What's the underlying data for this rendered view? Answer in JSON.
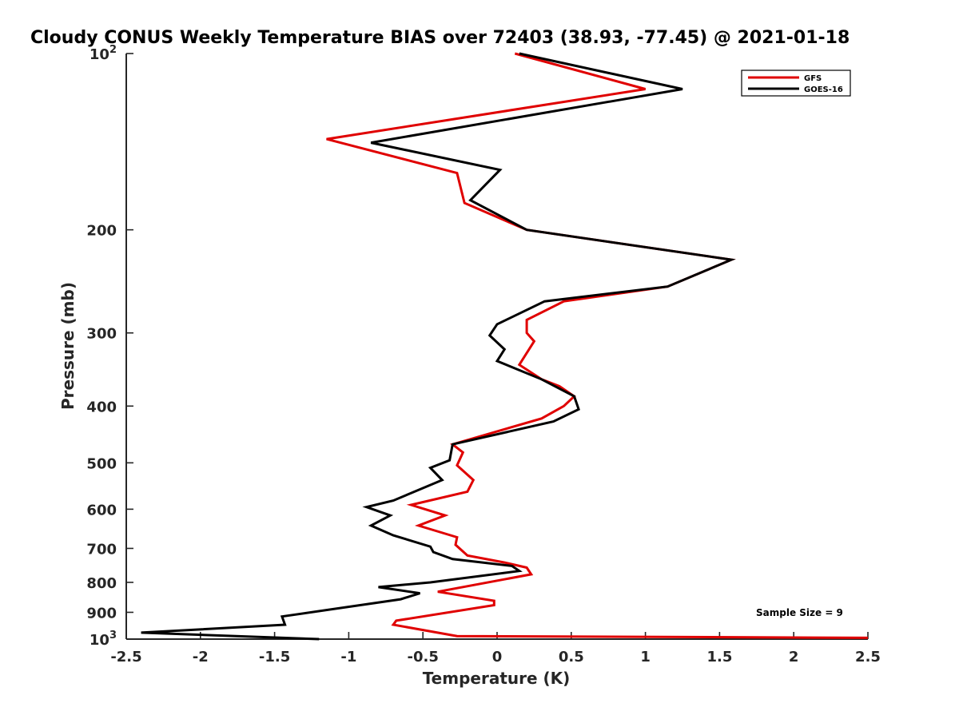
{
  "chart_data": {
    "type": "line",
    "title": "Cloudy CONUS Weekly Temperature BIAS over 72403 (38.93, -77.45) @ 2021-01-18",
    "xlabel": "Temperature (K)",
    "ylabel": "Pressure (mb)",
    "xlim": [
      -2.5,
      2.5
    ],
    "ylim": [
      100,
      1000
    ],
    "y_scale": "log",
    "y_reversed": true,
    "grid": false,
    "legend_position": "top-right",
    "x_ticks": [
      {
        "value": -2.5,
        "label": "-2.5"
      },
      {
        "value": -2,
        "label": "-2"
      },
      {
        "value": -1.5,
        "label": "-1.5"
      },
      {
        "value": -1,
        "label": "-1"
      },
      {
        "value": -0.5,
        "label": "-0.5"
      },
      {
        "value": 0,
        "label": "0"
      },
      {
        "value": 0.5,
        "label": "0.5"
      },
      {
        "value": 1,
        "label": "1"
      },
      {
        "value": 1.5,
        "label": "1.5"
      },
      {
        "value": 2,
        "label": "2"
      },
      {
        "value": 2.5,
        "label": "2.5"
      }
    ],
    "y_ticks": [
      {
        "value": 100,
        "base": "10",
        "exp": "2"
      },
      {
        "value": 200,
        "label": "200"
      },
      {
        "value": 300,
        "label": "300"
      },
      {
        "value": 400,
        "label": "400"
      },
      {
        "value": 500,
        "label": "500"
      },
      {
        "value": 600,
        "label": "600"
      },
      {
        "value": 700,
        "label": "700"
      },
      {
        "value": 800,
        "label": "800"
      },
      {
        "value": 900,
        "label": "900"
      },
      {
        "value": 1000,
        "base": "10",
        "exp": "3"
      }
    ],
    "series": [
      {
        "name": "GFS",
        "color": "#e00000",
        "points": [
          [
            0.12,
            100
          ],
          [
            1.0,
            115
          ],
          [
            -1.15,
            140
          ],
          [
            -0.27,
            160
          ],
          [
            -0.22,
            180
          ],
          [
            0.2,
            200
          ],
          [
            1.58,
            225
          ],
          [
            1.15,
            250
          ],
          [
            0.45,
            265
          ],
          [
            0.2,
            285
          ],
          [
            0.2,
            300
          ],
          [
            0.25,
            310
          ],
          [
            0.15,
            340
          ],
          [
            0.3,
            360
          ],
          [
            0.42,
            370
          ],
          [
            0.52,
            385
          ],
          [
            0.45,
            400
          ],
          [
            0.3,
            420
          ],
          [
            -0.3,
            465
          ],
          [
            -0.23,
            480
          ],
          [
            -0.27,
            505
          ],
          [
            -0.16,
            535
          ],
          [
            -0.2,
            560
          ],
          [
            -0.58,
            590
          ],
          [
            -0.35,
            615
          ],
          [
            -0.53,
            640
          ],
          [
            -0.27,
            670
          ],
          [
            -0.28,
            690
          ],
          [
            -0.2,
            720
          ],
          [
            0.05,
            740
          ],
          [
            0.2,
            755
          ],
          [
            0.23,
            775
          ],
          [
            -0.4,
            830
          ],
          [
            -0.02,
            860
          ],
          [
            -0.02,
            875
          ],
          [
            -0.68,
            930
          ],
          [
            -0.7,
            945
          ],
          [
            -0.27,
            988
          ],
          [
            2.5,
            995
          ]
        ]
      },
      {
        "name": "GOES-16",
        "color": "#000000",
        "points": [
          [
            0.15,
            100
          ],
          [
            1.25,
            115
          ],
          [
            -0.85,
            142
          ],
          [
            0.02,
            158
          ],
          [
            -0.18,
            178
          ],
          [
            0.2,
            200
          ],
          [
            1.58,
            225
          ],
          [
            1.15,
            250
          ],
          [
            0.32,
            265
          ],
          [
            0.0,
            290
          ],
          [
            -0.05,
            303
          ],
          [
            0.05,
            320
          ],
          [
            0.0,
            335
          ],
          [
            0.3,
            360
          ],
          [
            0.52,
            385
          ],
          [
            0.55,
            405
          ],
          [
            0.38,
            425
          ],
          [
            -0.3,
            465
          ],
          [
            -0.32,
            495
          ],
          [
            -0.45,
            510
          ],
          [
            -0.37,
            535
          ],
          [
            -0.7,
            580
          ],
          [
            -0.88,
            595
          ],
          [
            -0.72,
            615
          ],
          [
            -0.85,
            640
          ],
          [
            -0.7,
            665
          ],
          [
            -0.45,
            695
          ],
          [
            -0.43,
            710
          ],
          [
            -0.3,
            730
          ],
          [
            0.1,
            750
          ],
          [
            0.15,
            765
          ],
          [
            -0.45,
            800
          ],
          [
            -0.8,
            815
          ],
          [
            -0.52,
            835
          ],
          [
            -0.65,
            855
          ],
          [
            -1.45,
            915
          ],
          [
            -1.43,
            945
          ],
          [
            -2.4,
            975
          ],
          [
            -1.2,
            1000
          ]
        ]
      }
    ],
    "annotation": "Sample Size = 9"
  }
}
